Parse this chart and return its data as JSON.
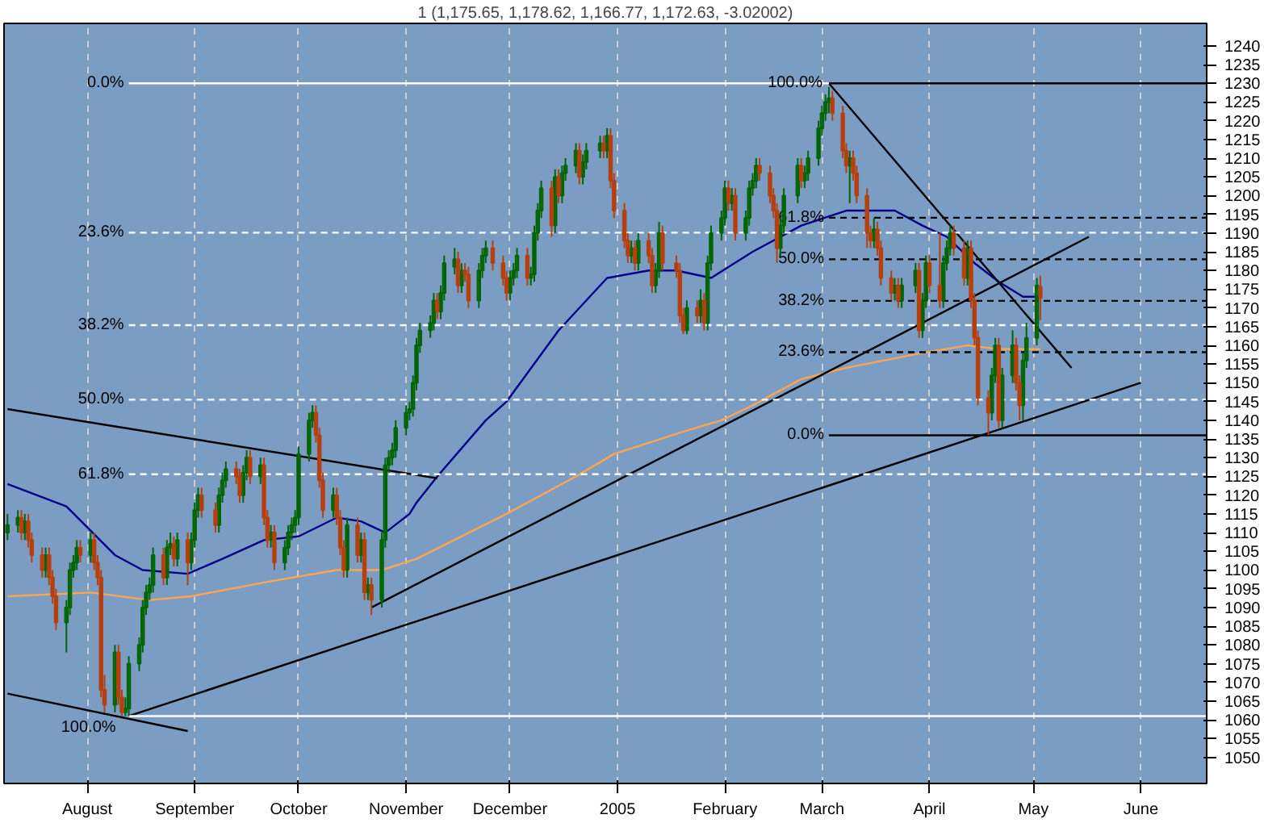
{
  "chart_data": {
    "type": "candlestick",
    "title": "1 (1,175.65, 1,178.62, 1,166.77, 1,172.63, -3.02002)",
    "xlim": [
      "2004-07-08",
      "2005-06-20"
    ],
    "ylim": [
      1043,
      1246
    ],
    "xticks": [
      {
        "value": "2004-08",
        "label": "August"
      },
      {
        "value": "2004-09",
        "label": "September"
      },
      {
        "value": "2004-10",
        "label": "October"
      },
      {
        "value": "2004-11",
        "label": "November"
      },
      {
        "value": "2004-12",
        "label": "December"
      },
      {
        "value": "2005-01",
        "label": "2005"
      },
      {
        "value": "2005-02",
        "label": "February"
      },
      {
        "value": "2005-03",
        "label": "March"
      },
      {
        "value": "2005-04",
        "label": "April"
      },
      {
        "value": "2005-05",
        "label": "May"
      },
      {
        "value": "2005-06",
        "label": "June"
      }
    ],
    "yticks": [
      1050,
      1055,
      1060,
      1065,
      1070,
      1075,
      1080,
      1085,
      1090,
      1095,
      1100,
      1105,
      1110,
      1115,
      1120,
      1125,
      1130,
      1135,
      1140,
      1145,
      1150,
      1155,
      1160,
      1165,
      1170,
      1175,
      1180,
      1185,
      1190,
      1195,
      1200,
      1205,
      1210,
      1215,
      1220,
      1225,
      1230,
      1235,
      1240
    ],
    "grid": "x",
    "series": [
      {
        "type": "line",
        "color": "#00008b",
        "line_style": "solid",
        "x": [
          "2004-07-09",
          "2004-07-26",
          "2004-08-09",
          "2004-08-17",
          "2004-08-30",
          "2004-09-09",
          "2004-09-21",
          "2004-10-01",
          "2004-10-12",
          "2004-10-19",
          "2004-10-26",
          "2004-11-02",
          "2004-11-04",
          "2004-11-10",
          "2004-11-24",
          "2004-11-30",
          "2004-12-15",
          "2004-12-29",
          "2005-01-10",
          "2005-01-18",
          "2005-01-28",
          "2005-02-09",
          "2005-02-23",
          "2005-03-08",
          "2005-03-22",
          "2005-03-30",
          "2005-04-06",
          "2005-04-14",
          "2005-04-21",
          "2005-04-28",
          "2005-05-03"
        ],
        "values": [
          1123,
          1117,
          1104,
          1100,
          1099,
          1103,
          1108,
          1109,
          1114,
          1113,
          1110,
          1115,
          1118,
          1125,
          1140,
          1145,
          1164,
          1178,
          1180,
          1180,
          1178,
          1185,
          1192,
          1196,
          1196,
          1192,
          1189,
          1182,
          1177,
          1173,
          1173
        ]
      },
      {
        "type": "line",
        "color": "#ffa54f",
        "line_style": "solid",
        "x": [
          "2004-07-09",
          "2004-08-02",
          "2004-08-19",
          "2004-08-31",
          "2004-09-23",
          "2004-10-12",
          "2004-10-25",
          "2004-11-04",
          "2004-11-30",
          "2004-12-20",
          "2004-12-31",
          "2005-01-20",
          "2005-01-31",
          "2005-02-09",
          "2005-02-23",
          "2005-03-08",
          "2005-03-30",
          "2005-04-12",
          "2005-04-21",
          "2005-05-03"
        ],
        "values": [
          1093,
          1094,
          1092,
          1093,
          1097,
          1100,
          1100,
          1103,
          1115,
          1125,
          1131,
          1137,
          1140,
          1144,
          1151,
          1154,
          1158,
          1160,
          1159,
          1159
        ]
      },
      {
        "type": "line",
        "color": "#000000",
        "line_style": "solid",
        "x": [
          "2004-07-09",
          "2004-11-10"
        ],
        "values": [
          1143,
          1124.5
        ]
      },
      {
        "type": "line",
        "color": "#000000",
        "line_style": "solid",
        "x": [
          "2004-07-09",
          "2004-08-30"
        ],
        "values": [
          1067,
          1057
        ]
      },
      {
        "type": "line",
        "color": "#000000",
        "line_style": "solid",
        "x": [
          "2004-08-13",
          "2005-06-01"
        ],
        "values": [
          1061,
          1150
        ]
      },
      {
        "type": "line",
        "color": "#000000",
        "line_style": "solid",
        "x": [
          "2004-10-22",
          "2005-05-17"
        ],
        "values": [
          1090,
          1189
        ]
      },
      {
        "type": "line",
        "color": "#000000",
        "line_style": "solid",
        "x": [
          "2005-03-03",
          "2005-05-12"
        ],
        "values": [
          1230,
          1154
        ]
      },
      {
        "type": "line",
        "name": "0.0%",
        "color": "#ffffff",
        "line_style": "solid",
        "x": [
          "2004-08-13",
          "2005-03-03"
        ],
        "values": [
          1230,
          1230
        ]
      },
      {
        "type": "line",
        "name": "23.6%",
        "color": "#ffffff",
        "line_style": "dashed",
        "x": [
          "2004-08-13",
          "2005-06-20"
        ],
        "values": [
          1190.1,
          1190.1
        ]
      },
      {
        "type": "line",
        "name": "38.2%",
        "color": "#ffffff",
        "line_style": "dashed",
        "x": [
          "2004-08-13",
          "2005-06-20"
        ],
        "values": [
          1165.4,
          1165.4
        ]
      },
      {
        "type": "line",
        "name": "50.0%",
        "color": "#ffffff",
        "line_style": "dashed",
        "x": [
          "2004-08-13",
          "2005-06-20"
        ],
        "values": [
          1145.5,
          1145.5
        ]
      },
      {
        "type": "line",
        "name": "61.8%",
        "color": "#ffffff",
        "line_style": "dashed",
        "x": [
          "2004-08-13",
          "2005-06-20"
        ],
        "values": [
          1125.6,
          1125.6
        ]
      },
      {
        "type": "line",
        "name": "100.0%",
        "color": "#ffffff",
        "line_style": "solid",
        "x": [
          "2004-08-13",
          "2005-06-20"
        ],
        "values": [
          1061,
          1061
        ]
      },
      {
        "type": "line",
        "name": "100.0%",
        "color": "#000000",
        "line_style": "solid",
        "x": [
          "2005-03-03",
          "2005-06-20"
        ],
        "values": [
          1230,
          1230
        ]
      },
      {
        "type": "line",
        "name": "61.8%",
        "color": "#000000",
        "line_style": "dashed",
        "x": [
          "2005-03-03",
          "2005-06-20"
        ],
        "values": [
          1194.1,
          1194.1
        ]
      },
      {
        "type": "line",
        "name": "50.0%",
        "color": "#000000",
        "line_style": "dashed",
        "x": [
          "2005-03-03",
          "2005-06-20"
        ],
        "values": [
          1183,
          1183
        ]
      },
      {
        "type": "line",
        "name": "38.2%",
        "color": "#000000",
        "line_style": "dashed",
        "x": [
          "2005-03-03",
          "2005-06-20"
        ],
        "values": [
          1171.9,
          1171.9
        ]
      },
      {
        "type": "line",
        "name": "23.6%",
        "color": "#000000",
        "line_style": "dashed",
        "x": [
          "2005-03-03",
          "2005-06-20"
        ],
        "values": [
          1158.2,
          1158.2
        ]
      },
      {
        "type": "line",
        "name": "0.0%",
        "color": "#000000",
        "line_style": "solid",
        "x": [
          "2005-03-03",
          "2005-06-20"
        ],
        "values": [
          1136,
          1136
        ]
      },
      {
        "color": "#006400",
        "x": [
          "2004-07-09",
          "2004-07-12",
          "2004-07-14",
          "2004-07-20",
          "2004-07-26",
          "2004-07-27",
          "2004-07-28",
          "2004-07-29",
          "2004-08-02",
          "2004-08-09",
          "2004-08-12",
          "2004-08-13",
          "2004-08-16",
          "2004-08-17",
          "2004-08-18",
          "2004-08-19",
          "2004-08-20",
          "2004-08-24",
          "2004-08-25",
          "2004-08-27",
          "2004-08-31",
          "2004-09-01",
          "2004-09-02",
          "2004-09-08",
          "2004-09-09",
          "2004-09-10",
          "2004-09-15",
          "2004-09-16",
          "2004-09-20",
          "2004-09-23",
          "2004-09-27",
          "2004-09-28",
          "2004-09-29",
          "2004-09-30",
          "2004-10-01",
          "2004-10-04",
          "2004-10-05",
          "2004-10-11",
          "2004-10-15",
          "2004-10-19",
          "2004-10-21",
          "2004-10-25",
          "2004-10-26",
          "2004-10-27",
          "2004-10-28",
          "2004-10-29",
          "2004-11-01",
          "2004-11-02",
          "2004-11-03",
          "2004-11-04",
          "2004-11-05",
          "2004-11-08",
          "2004-11-09",
          "2004-11-11",
          "2004-11-12",
          "2004-11-15",
          "2004-11-17",
          "2004-11-22",
          "2004-11-23",
          "2004-11-24",
          "2004-12-01",
          "2004-12-02",
          "2004-12-03",
          "2004-12-07",
          "2004-12-08",
          "2004-12-09",
          "2004-12-10",
          "2004-12-14",
          "2004-12-16",
          "2004-12-17",
          "2004-12-20",
          "2004-12-22",
          "2004-12-23",
          "2004-12-27",
          "2004-12-29",
          "2005-01-05",
          "2005-01-07",
          "2005-01-12",
          "2005-01-13",
          "2005-01-21",
          "2005-01-25",
          "2005-01-27",
          "2005-01-28",
          "2005-01-31",
          "2005-02-01",
          "2005-02-03",
          "2005-02-07",
          "2005-02-08",
          "2005-02-09",
          "2005-02-10",
          "2005-02-17",
          "2005-02-18",
          "2005-02-22",
          "2005-02-24",
          "2005-02-25",
          "2005-02-28",
          "2005-03-01",
          "2005-03-02",
          "2005-03-03",
          "2005-03-09",
          "2005-03-16",
          "2005-03-22",
          "2005-03-24",
          "2005-03-28",
          "2005-03-30",
          "2005-03-31",
          "2005-04-05",
          "2005-04-06",
          "2005-04-07",
          "2005-04-12",
          "2005-04-19",
          "2005-04-20",
          "2005-04-22",
          "2005-04-25",
          "2005-04-28",
          "2005-04-29",
          "2005-05-02"
        ],
        "ohlc": [
          [
            1110,
            1115,
            1108,
            1112
          ],
          [
            1112,
            1116,
            1110,
            1114
          ],
          [
            1110,
            1115,
            1108,
            1113
          ],
          [
            1100,
            1106,
            1098,
            1104
          ],
          [
            1086,
            1092,
            1078,
            1090
          ],
          [
            1090,
            1102,
            1088,
            1100
          ],
          [
            1100,
            1104,
            1098,
            1102
          ],
          [
            1102,
            1108,
            1100,
            1106
          ],
          [
            1104,
            1110,
            1102,
            1108
          ],
          [
            1064,
            1080,
            1062,
            1078
          ],
          [
            1062,
            1066,
            1061,
            1063
          ],
          [
            1063,
            1077,
            1061,
            1075
          ],
          [
            1075,
            1082,
            1073,
            1080
          ],
          [
            1080,
            1092,
            1078,
            1090
          ],
          [
            1090,
            1096,
            1088,
            1094
          ],
          [
            1094,
            1098,
            1092,
            1096
          ],
          [
            1096,
            1106,
            1094,
            1104
          ],
          [
            1098,
            1108,
            1096,
            1106
          ],
          [
            1106,
            1110,
            1104,
            1107
          ],
          [
            1103,
            1110,
            1101,
            1108
          ],
          [
            1102,
            1110,
            1100,
            1108
          ],
          [
            1108,
            1118,
            1106,
            1116
          ],
          [
            1116,
            1122,
            1114,
            1120
          ],
          [
            1112,
            1122,
            1110,
            1120
          ],
          [
            1120,
            1126,
            1118,
            1124
          ],
          [
            1124,
            1129,
            1122,
            1127
          ],
          [
            1120,
            1128,
            1118,
            1126
          ],
          [
            1126,
            1132,
            1124,
            1130
          ],
          [
            1125,
            1130,
            1123,
            1128
          ],
          [
            1108,
            1112,
            1106,
            1110
          ],
          [
            1102,
            1108,
            1100,
            1106
          ],
          [
            1106,
            1112,
            1104,
            1110
          ],
          [
            1110,
            1114,
            1108,
            1112
          ],
          [
            1112,
            1116,
            1110,
            1114
          ],
          [
            1114,
            1133,
            1112,
            1131
          ],
          [
            1131,
            1142,
            1129,
            1140
          ],
          [
            1140,
            1144,
            1138,
            1142
          ],
          [
            1116,
            1122,
            1114,
            1120
          ],
          [
            1100,
            1114,
            1098,
            1112
          ],
          [
            1104,
            1110,
            1102,
            1108
          ],
          [
            1094,
            1098,
            1092,
            1096
          ],
          [
            1092,
            1110,
            1090,
            1108
          ],
          [
            1108,
            1130,
            1106,
            1128
          ],
          [
            1128,
            1132,
            1126,
            1130
          ],
          [
            1130,
            1134,
            1128,
            1132
          ],
          [
            1132,
            1140,
            1130,
            1138
          ],
          [
            1138,
            1144,
            1136,
            1142
          ],
          [
            1142,
            1145,
            1140,
            1143
          ],
          [
            1143,
            1152,
            1141,
            1150
          ],
          [
            1150,
            1162,
            1148,
            1160
          ],
          [
            1160,
            1166,
            1158,
            1164
          ],
          [
            1164,
            1168,
            1162,
            1166
          ],
          [
            1166,
            1174,
            1164,
            1172
          ],
          [
            1169,
            1176,
            1167,
            1174
          ],
          [
            1174,
            1184,
            1172,
            1182
          ],
          [
            1181,
            1186,
            1179,
            1183
          ],
          [
            1176,
            1182,
            1174,
            1180
          ],
          [
            1172,
            1182,
            1170,
            1180
          ],
          [
            1180,
            1186,
            1178,
            1184
          ],
          [
            1184,
            1188,
            1182,
            1186
          ],
          [
            1174,
            1180,
            1172,
            1178
          ],
          [
            1178,
            1182,
            1176,
            1180
          ],
          [
            1180,
            1186,
            1178,
            1184
          ],
          [
            1178,
            1181,
            1176,
            1179
          ],
          [
            1179,
            1192,
            1177,
            1190
          ],
          [
            1190,
            1198,
            1188,
            1196
          ],
          [
            1196,
            1204,
            1194,
            1202
          ],
          [
            1192,
            1207,
            1190,
            1205
          ],
          [
            1200,
            1208,
            1198,
            1206
          ],
          [
            1206,
            1210,
            1204,
            1208
          ],
          [
            1208,
            1214,
            1206,
            1212
          ],
          [
            1205,
            1211,
            1203,
            1209
          ],
          [
            1209,
            1214,
            1207,
            1212
          ],
          [
            1212,
            1216,
            1210,
            1214
          ],
          [
            1212,
            1218,
            1210,
            1216
          ],
          [
            1184,
            1188,
            1182,
            1186
          ],
          [
            1182,
            1190,
            1180,
            1188
          ],
          [
            1176,
            1182,
            1174,
            1180
          ],
          [
            1180,
            1193,
            1178,
            1190
          ],
          [
            1164,
            1172,
            1163,
            1170
          ],
          [
            1168,
            1175,
            1166,
            1172
          ],
          [
            1166,
            1184,
            1164,
            1182
          ],
          [
            1182,
            1192,
            1180,
            1190
          ],
          [
            1190,
            1196,
            1188,
            1194
          ],
          [
            1194,
            1204,
            1192,
            1202
          ],
          [
            1198,
            1202,
            1196,
            1200
          ],
          [
            1190,
            1196,
            1188,
            1194
          ],
          [
            1194,
            1204,
            1192,
            1202
          ],
          [
            1202,
            1206,
            1200,
            1204
          ],
          [
            1204,
            1210,
            1202,
            1208
          ],
          [
            1186,
            1194,
            1184,
            1192
          ],
          [
            1192,
            1202,
            1190,
            1200
          ],
          [
            1200,
            1210,
            1198,
            1208
          ],
          [
            1204,
            1208,
            1202,
            1206
          ],
          [
            1206,
            1212,
            1204,
            1210
          ],
          [
            1210,
            1220,
            1208,
            1218
          ],
          [
            1218,
            1224,
            1216,
            1222
          ],
          [
            1222,
            1227,
            1220,
            1225
          ],
          [
            1225,
            1229,
            1222,
            1226
          ],
          [
            1208,
            1212,
            1198,
            1210
          ],
          [
            1188,
            1194,
            1186,
            1191
          ],
          [
            1174,
            1178,
            1172,
            1176
          ],
          [
            1172,
            1178,
            1170,
            1176
          ],
          [
            1176,
            1182,
            1174,
            1180
          ],
          [
            1164,
            1174,
            1162,
            1172
          ],
          [
            1172,
            1184,
            1170,
            1182
          ],
          [
            1172,
            1184,
            1170,
            1182
          ],
          [
            1182,
            1188,
            1180,
            1186
          ],
          [
            1186,
            1192,
            1184,
            1190
          ],
          [
            1178,
            1188,
            1176,
            1186
          ],
          [
            1142,
            1154,
            1140,
            1152
          ],
          [
            1152,
            1162,
            1150,
            1160
          ],
          [
            1140,
            1154,
            1138,
            1152
          ],
          [
            1152,
            1164,
            1150,
            1160
          ],
          [
            1144,
            1158,
            1140,
            1156
          ],
          [
            1156,
            1166,
            1154,
            1162
          ],
          [
            1162,
            1178,
            1160,
            1176
          ]
        ]
      },
      {
        "color": "#b5400f",
        "x": [
          "2004-07-13",
          "2004-07-15",
          "2004-07-16",
          "2004-07-19",
          "2004-07-21",
          "2004-07-22",
          "2004-07-23",
          "2004-07-30",
          "2004-08-03",
          "2004-08-04",
          "2004-08-05",
          "2004-08-06",
          "2004-08-10",
          "2004-08-11",
          "2004-08-23",
          "2004-08-26",
          "2004-08-30",
          "2004-09-03",
          "2004-09-07",
          "2004-09-13",
          "2004-09-14",
          "2004-09-17",
          "2004-09-21",
          "2004-09-22",
          "2004-09-24",
          "2004-10-06",
          "2004-10-07",
          "2004-10-08",
          "2004-10-12",
          "2004-10-13",
          "2004-10-14",
          "2004-10-18",
          "2004-10-20",
          "2004-10-22",
          "2004-11-10",
          "2004-11-16",
          "2004-11-18",
          "2004-11-19",
          "2004-11-26",
          "2004-11-29",
          "2004-11-30",
          "2004-12-06",
          "2004-12-13",
          "2004-12-15",
          "2004-12-21",
          "2004-12-28",
          "2004-12-30",
          "2004-12-31",
          "2005-01-03",
          "2005-01-04",
          "2005-01-06",
          "2005-01-10",
          "2005-01-11",
          "2005-01-14",
          "2005-01-18",
          "2005-01-19",
          "2005-01-20",
          "2005-01-24",
          "2005-01-26",
          "2005-02-02",
          "2005-02-04",
          "2005-02-11",
          "2005-02-14",
          "2005-02-15",
          "2005-02-16",
          "2005-02-23",
          "2005-03-04",
          "2005-03-07",
          "2005-03-08",
          "2005-03-10",
          "2005-03-11",
          "2005-03-14",
          "2005-03-15",
          "2005-03-17",
          "2005-03-18",
          "2005-03-21",
          "2005-03-23",
          "2005-03-29",
          "2005-04-01",
          "2005-04-04",
          "2005-04-08",
          "2005-04-11",
          "2005-04-13",
          "2005-04-14",
          "2005-04-15",
          "2005-04-18",
          "2005-04-21",
          "2005-04-26",
          "2005-04-27",
          "2005-05-03"
        ],
        "ohlc": [
          [
            1114,
            1116,
            1108,
            1110
          ],
          [
            1113,
            1115,
            1106,
            1108
          ],
          [
            1108,
            1110,
            1102,
            1104
          ],
          [
            1104,
            1106,
            1098,
            1100
          ],
          [
            1104,
            1106,
            1096,
            1098
          ],
          [
            1098,
            1100,
            1091,
            1093
          ],
          [
            1093,
            1095,
            1084,
            1086
          ],
          [
            1106,
            1108,
            1102,
            1104
          ],
          [
            1108,
            1110,
            1100,
            1102
          ],
          [
            1102,
            1104,
            1096,
            1098
          ],
          [
            1098,
            1100,
            1066,
            1068
          ],
          [
            1068,
            1072,
            1062,
            1064
          ],
          [
            1078,
            1080,
            1064,
            1066
          ],
          [
            1066,
            1068,
            1061,
            1062
          ],
          [
            1104,
            1106,
            1096,
            1098
          ],
          [
            1107,
            1109,
            1101,
            1103
          ],
          [
            1108,
            1110,
            1096,
            1102
          ],
          [
            1120,
            1122,
            1114,
            1116
          ],
          [
            1116,
            1118,
            1110,
            1112
          ],
          [
            1127,
            1129,
            1123,
            1125
          ],
          [
            1125,
            1127,
            1118,
            1120
          ],
          [
            1130,
            1132,
            1123,
            1125
          ],
          [
            1128,
            1130,
            1112,
            1114
          ],
          [
            1114,
            1116,
            1106,
            1108
          ],
          [
            1110,
            1112,
            1100,
            1102
          ],
          [
            1142,
            1144,
            1134,
            1136
          ],
          [
            1136,
            1138,
            1122,
            1124
          ],
          [
            1124,
            1126,
            1114,
            1116
          ],
          [
            1120,
            1122,
            1112,
            1114
          ],
          [
            1114,
            1116,
            1104,
            1106
          ],
          [
            1106,
            1108,
            1098,
            1100
          ],
          [
            1112,
            1114,
            1102,
            1104
          ],
          [
            1108,
            1110,
            1092,
            1094
          ],
          [
            1096,
            1098,
            1088,
            1092
          ],
          [
            1172,
            1174,
            1167,
            1169
          ],
          [
            1183,
            1185,
            1174,
            1176
          ],
          [
            1180,
            1182,
            1177,
            1179
          ],
          [
            1179,
            1181,
            1170,
            1172
          ],
          [
            1186,
            1188,
            1180,
            1182
          ],
          [
            1182,
            1184,
            1176,
            1178
          ],
          [
            1178,
            1180,
            1172,
            1174
          ],
          [
            1184,
            1186,
            1176,
            1178
          ],
          [
            1202,
            1204,
            1189,
            1192
          ],
          [
            1205,
            1207,
            1198,
            1200
          ],
          [
            1212,
            1214,
            1203,
            1205
          ],
          [
            1214,
            1216,
            1210,
            1212
          ],
          [
            1216,
            1218,
            1202,
            1204
          ],
          [
            1204,
            1206,
            1194,
            1196
          ],
          [
            1196,
            1198,
            1186,
            1188
          ],
          [
            1188,
            1190,
            1182,
            1184
          ],
          [
            1186,
            1188,
            1180,
            1182
          ],
          [
            1188,
            1190,
            1182,
            1184
          ],
          [
            1184,
            1186,
            1174,
            1176
          ],
          [
            1190,
            1192,
            1180,
            1182
          ],
          [
            1182,
            1184,
            1178,
            1180
          ],
          [
            1180,
            1182,
            1166,
            1168
          ],
          [
            1168,
            1170,
            1163,
            1164
          ],
          [
            1170,
            1172,
            1166,
            1168
          ],
          [
            1172,
            1174,
            1164,
            1166
          ],
          [
            1202,
            1204,
            1196,
            1198
          ],
          [
            1200,
            1202,
            1188,
            1190
          ],
          [
            1208,
            1210,
            1204,
            1206
          ],
          [
            1206,
            1208,
            1198,
            1200
          ],
          [
            1200,
            1202,
            1194,
            1196
          ],
          [
            1196,
            1198,
            1182,
            1186
          ],
          [
            1208,
            1210,
            1202,
            1204
          ],
          [
            1226,
            1228,
            1220,
            1222
          ],
          [
            1222,
            1224,
            1210,
            1212
          ],
          [
            1212,
            1214,
            1206,
            1208
          ],
          [
            1210,
            1212,
            1204,
            1206
          ],
          [
            1206,
            1208,
            1198,
            1200
          ],
          [
            1200,
            1202,
            1186,
            1190
          ],
          [
            1190,
            1192,
            1186,
            1188
          ],
          [
            1191,
            1193,
            1184,
            1186
          ],
          [
            1186,
            1188,
            1176,
            1178
          ],
          [
            1178,
            1180,
            1172,
            1174
          ],
          [
            1176,
            1178,
            1170,
            1172
          ],
          [
            1180,
            1182,
            1162,
            1164
          ],
          [
            1182,
            1184,
            1174,
            1176
          ],
          [
            1176,
            1190,
            1170,
            1172
          ],
          [
            1190,
            1192,
            1184,
            1186
          ],
          [
            1186,
            1188,
            1176,
            1178
          ],
          [
            1186,
            1188,
            1170,
            1172
          ],
          [
            1172,
            1174,
            1160,
            1162
          ],
          [
            1162,
            1164,
            1144,
            1146
          ],
          [
            1146,
            1148,
            1136,
            1142
          ],
          [
            1160,
            1162,
            1138,
            1140
          ],
          [
            1160,
            1162,
            1148,
            1150
          ],
          [
            1150,
            1152,
            1140,
            1144
          ],
          [
            1175.65,
            1178.62,
            1166.77,
            1172.63
          ]
        ]
      }
    ]
  }
}
